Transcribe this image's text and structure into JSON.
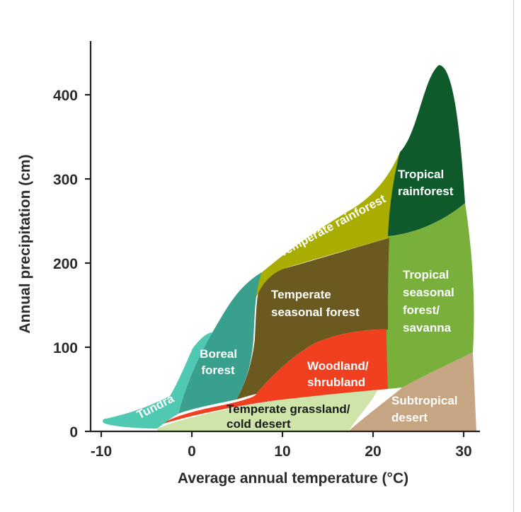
{
  "axes": {
    "x_title": "Average annual temperature (°C)",
    "y_title": "Annual precipitation (cm)",
    "x_ticks": [
      "-10",
      "0",
      "10",
      "20",
      "30"
    ],
    "y_ticks": [
      "0",
      "100",
      "200",
      "300",
      "400"
    ]
  },
  "biomes": {
    "tundra": {
      "label": "Tundra",
      "color": "#4fc9b2"
    },
    "boreal_forest": {
      "lines": [
        "Boreal",
        "forest"
      ],
      "color": "#3aa08e"
    },
    "temperate_grassland": {
      "lines": [
        "Temperate grassland/",
        "cold desert"
      ],
      "color": "#cfe4a8"
    },
    "woodland_shrubland": {
      "lines": [
        "Woodland/",
        "shrubland"
      ],
      "color": "#f0401f"
    },
    "temperate_seasonal_forest": {
      "lines": [
        "Temperate",
        "seasonal forest"
      ],
      "color": "#6b5a1f"
    },
    "temperate_rainforest": {
      "label": "Temperate rainforest",
      "color": "#a9ad00"
    },
    "tropical_rainforest": {
      "lines": [
        "Tropical",
        "rainforest"
      ],
      "color": "#0e5a2a"
    },
    "tropical_seasonal_forest": {
      "lines": [
        "Tropical",
        "seasonal",
        "forest/",
        "savanna"
      ],
      "color": "#79b03c"
    },
    "subtropical_desert": {
      "lines": [
        "Subtropical",
        "desert"
      ],
      "color": "#c6a583"
    }
  }
}
